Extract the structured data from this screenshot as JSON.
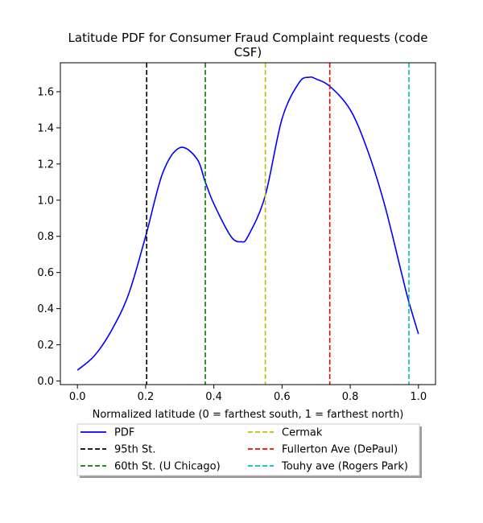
{
  "chart_data": {
    "type": "line",
    "title_lines": [
      "Latitude PDF for Consumer Fraud Complaint  requests (code",
      "CSF)"
    ],
    "xlabel": "Normalized latitude (0 = farthest south, 1 = farthest north)",
    "ylabel": "",
    "xlim": [
      -0.05,
      1.05
    ],
    "ylim": [
      -0.02,
      1.76
    ],
    "xticks": [
      0.0,
      0.2,
      0.4,
      0.6,
      0.8,
      1.0
    ],
    "xtick_labels": [
      "0.0",
      "0.2",
      "0.4",
      "0.6",
      "0.8",
      "1.0"
    ],
    "yticks": [
      0.0,
      0.2,
      0.4,
      0.6,
      0.8,
      1.0,
      1.2,
      1.4,
      1.6
    ],
    "ytick_labels": [
      "0.0",
      "0.2",
      "0.4",
      "0.6",
      "0.8",
      "1.0",
      "1.2",
      "1.4",
      "1.6"
    ],
    "grid": false,
    "legend_placement": "below",
    "series": [
      {
        "name": "PDF",
        "color": "#0000ff",
        "style": "solid",
        "x": [
          0.0,
          0.05,
          0.1,
          0.15,
          0.2,
          0.25,
          0.3,
          0.35,
          0.375,
          0.4,
          0.45,
          0.48,
          0.5,
          0.55,
          0.6,
          0.65,
          0.68,
          0.7,
          0.74,
          0.8,
          0.85,
          0.9,
          0.95,
          0.97,
          1.0
        ],
        "y": [
          0.06,
          0.14,
          0.28,
          0.48,
          0.8,
          1.15,
          1.29,
          1.23,
          1.1,
          0.98,
          0.8,
          0.77,
          0.8,
          1.02,
          1.45,
          1.65,
          1.68,
          1.67,
          1.63,
          1.5,
          1.28,
          0.98,
          0.6,
          0.45,
          0.26
        ]
      }
    ],
    "vlines": [
      {
        "name": "95th St.",
        "x": 0.203,
        "color": "#000000"
      },
      {
        "name": "60th St. (U Chicago)",
        "x": 0.375,
        "color": "#008000"
      },
      {
        "name": "Cermak",
        "x": 0.551,
        "color": "#bfbf00"
      },
      {
        "name": "Fullerton Ave (DePaul)",
        "x": 0.74,
        "color": "#ff0000"
      },
      {
        "name": "Touhy ave (Rogers Park)",
        "x": 0.972,
        "color": "#00bfbf"
      }
    ]
  }
}
